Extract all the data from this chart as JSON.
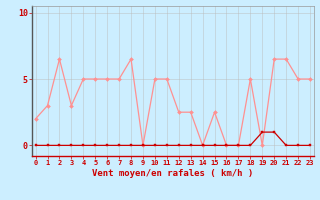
{
  "hours": [
    0,
    1,
    2,
    3,
    4,
    5,
    6,
    7,
    8,
    9,
    10,
    11,
    12,
    13,
    14,
    15,
    16,
    17,
    18,
    19,
    20,
    21,
    22,
    23
  ],
  "rafales": [
    2,
    3,
    6.5,
    3,
    5,
    5,
    5,
    5,
    6.5,
    0,
    5,
    5,
    2.5,
    2.5,
    0,
    2.5,
    0,
    0,
    5,
    0,
    6.5,
    6.5,
    5,
    5
  ],
  "vent_moyen": [
    0,
    0,
    0,
    0,
    0,
    0,
    0,
    0,
    0,
    0,
    0,
    0,
    0,
    0,
    0,
    0,
    0,
    0,
    0,
    1,
    1,
    0,
    0,
    0
  ],
  "line_color_rafales": "#ff9090",
  "line_color_vent": "#cc0000",
  "marker_color_vent": "#cc0000",
  "background_color": "#cceeff",
  "grid_color": "#bbbbbb",
  "xlabel": "Vent moyen/en rafales ( km/h )",
  "yticks": [
    0,
    5,
    10
  ],
  "xlim": [
    -0.3,
    23.3
  ],
  "ylim": [
    -0.8,
    10.5
  ],
  "xlabel_color": "#cc0000",
  "tick_color": "#cc0000",
  "tick_fontsize": 5.0,
  "ytick_fontsize": 6.0,
  "xlabel_fontsize": 6.5
}
